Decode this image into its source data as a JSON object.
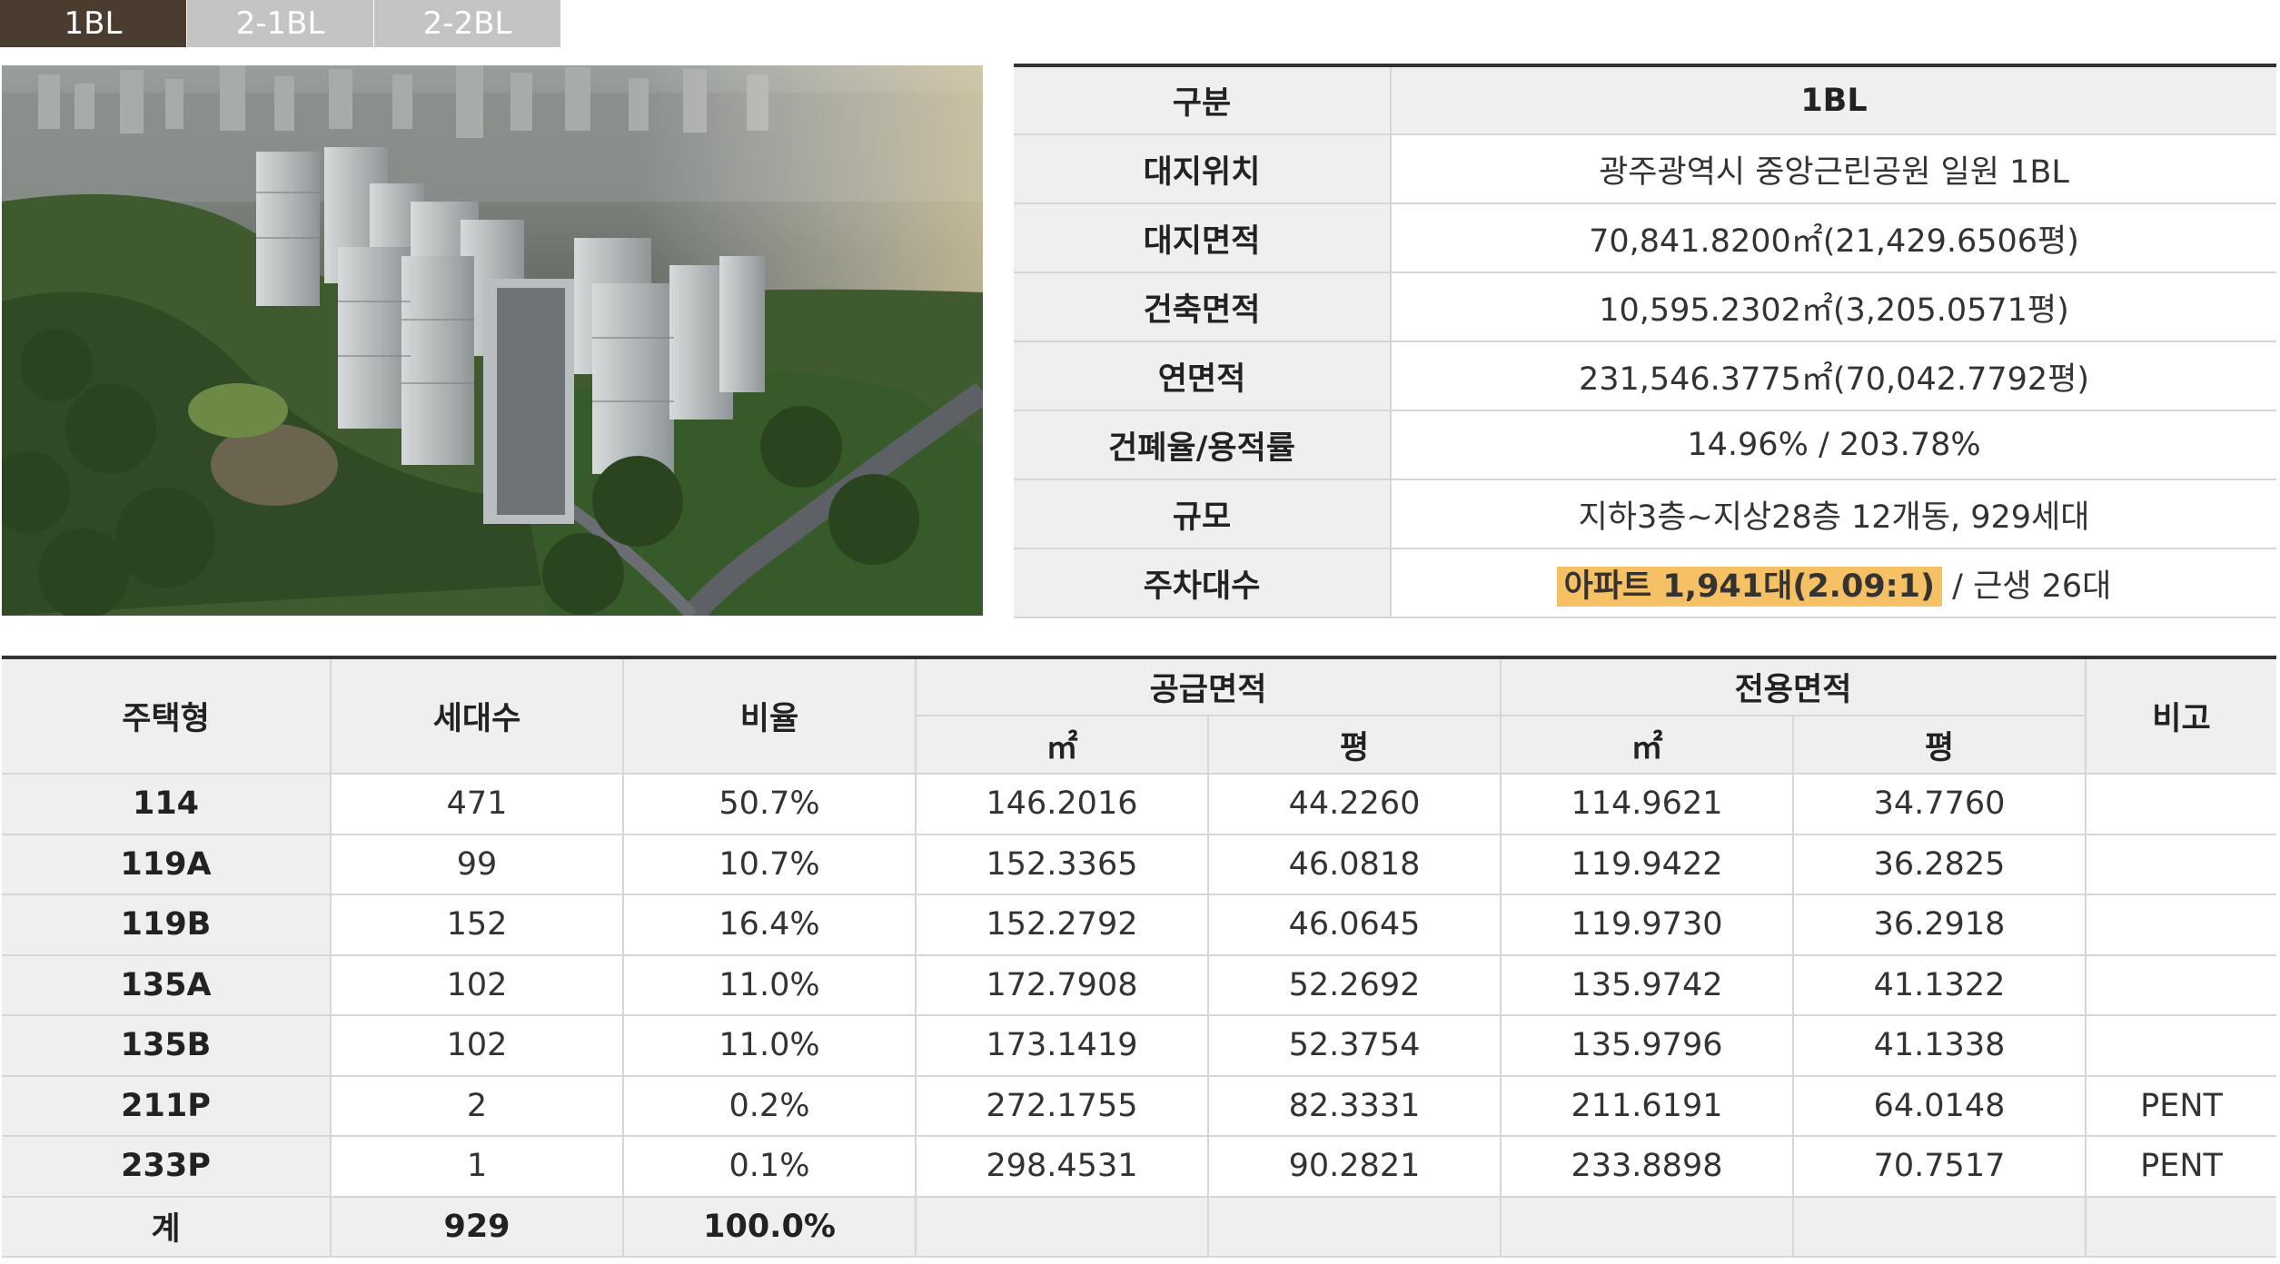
{
  "tabs": [
    {
      "label": "1BL",
      "active": true
    },
    {
      "label": "2-1BL",
      "active": false
    },
    {
      "label": "2-2BL",
      "active": false
    }
  ],
  "colors": {
    "tab_active": "#4a3c2e",
    "tab_inactive": "#c4c4c4",
    "highlight": "#f6c064",
    "header_bg": "#efefef"
  },
  "image": {
    "name": "aerial-rendering-image"
  },
  "info": {
    "rows": [
      {
        "key": "구분",
        "value": "1BL"
      },
      {
        "key": "대지위치",
        "value": "광주광역시 중앙근린공원 일원 1BL"
      },
      {
        "key": "대지면적",
        "value": "70,841.8200㎡(21,429.6506평)"
      },
      {
        "key": "건축면적",
        "value": "10,595.2302㎡(3,205.0571평)"
      },
      {
        "key": "연면적",
        "value": "231,546.3775㎡(70,042.7792평)"
      },
      {
        "key": "건폐율/용적률",
        "value": "14.96% / 203.78%"
      },
      {
        "key": "규모",
        "value": "지하3층~지상28층 12개동, 929세대"
      }
    ],
    "parking": {
      "key": "주차대수",
      "highlight": "아파트 1,941대(2.09:1)",
      "rest": " / 근생 26대"
    }
  },
  "units": {
    "headers": {
      "type": "주택형",
      "households": "세대수",
      "ratio": "비율",
      "supply": "공급면적",
      "exclusive": "전용면적",
      "note": "비고",
      "sqm": "㎡",
      "pyeong": "평"
    },
    "rows": [
      {
        "type": "114",
        "households": "471",
        "ratio": "50.7%",
        "supply_sqm": "146.2016",
        "supply_py": "44.2260",
        "excl_sqm": "114.9621",
        "excl_py": "34.7760",
        "note": ""
      },
      {
        "type": "119A",
        "households": "99",
        "ratio": "10.7%",
        "supply_sqm": "152.3365",
        "supply_py": "46.0818",
        "excl_sqm": "119.9422",
        "excl_py": "36.2825",
        "note": ""
      },
      {
        "type": "119B",
        "households": "152",
        "ratio": "16.4%",
        "supply_sqm": "152.2792",
        "supply_py": "46.0645",
        "excl_sqm": "119.9730",
        "excl_py": "36.2918",
        "note": ""
      },
      {
        "type": "135A",
        "households": "102",
        "ratio": "11.0%",
        "supply_sqm": "172.7908",
        "supply_py": "52.2692",
        "excl_sqm": "135.9742",
        "excl_py": "41.1322",
        "note": ""
      },
      {
        "type": "135B",
        "households": "102",
        "ratio": "11.0%",
        "supply_sqm": "173.1419",
        "supply_py": "52.3754",
        "excl_sqm": "135.9796",
        "excl_py": "41.1338",
        "note": ""
      },
      {
        "type": "211P",
        "households": "2",
        "ratio": "0.2%",
        "supply_sqm": "272.1755",
        "supply_py": "82.3331",
        "excl_sqm": "211.6191",
        "excl_py": "64.0148",
        "note": "PENT"
      },
      {
        "type": "233P",
        "households": "1",
        "ratio": "0.1%",
        "supply_sqm": "298.4531",
        "supply_py": "90.2821",
        "excl_sqm": "233.8898",
        "excl_py": "70.7517",
        "note": "PENT"
      }
    ],
    "total": {
      "type": "계",
      "households": "929",
      "ratio": "100.0%"
    }
  }
}
